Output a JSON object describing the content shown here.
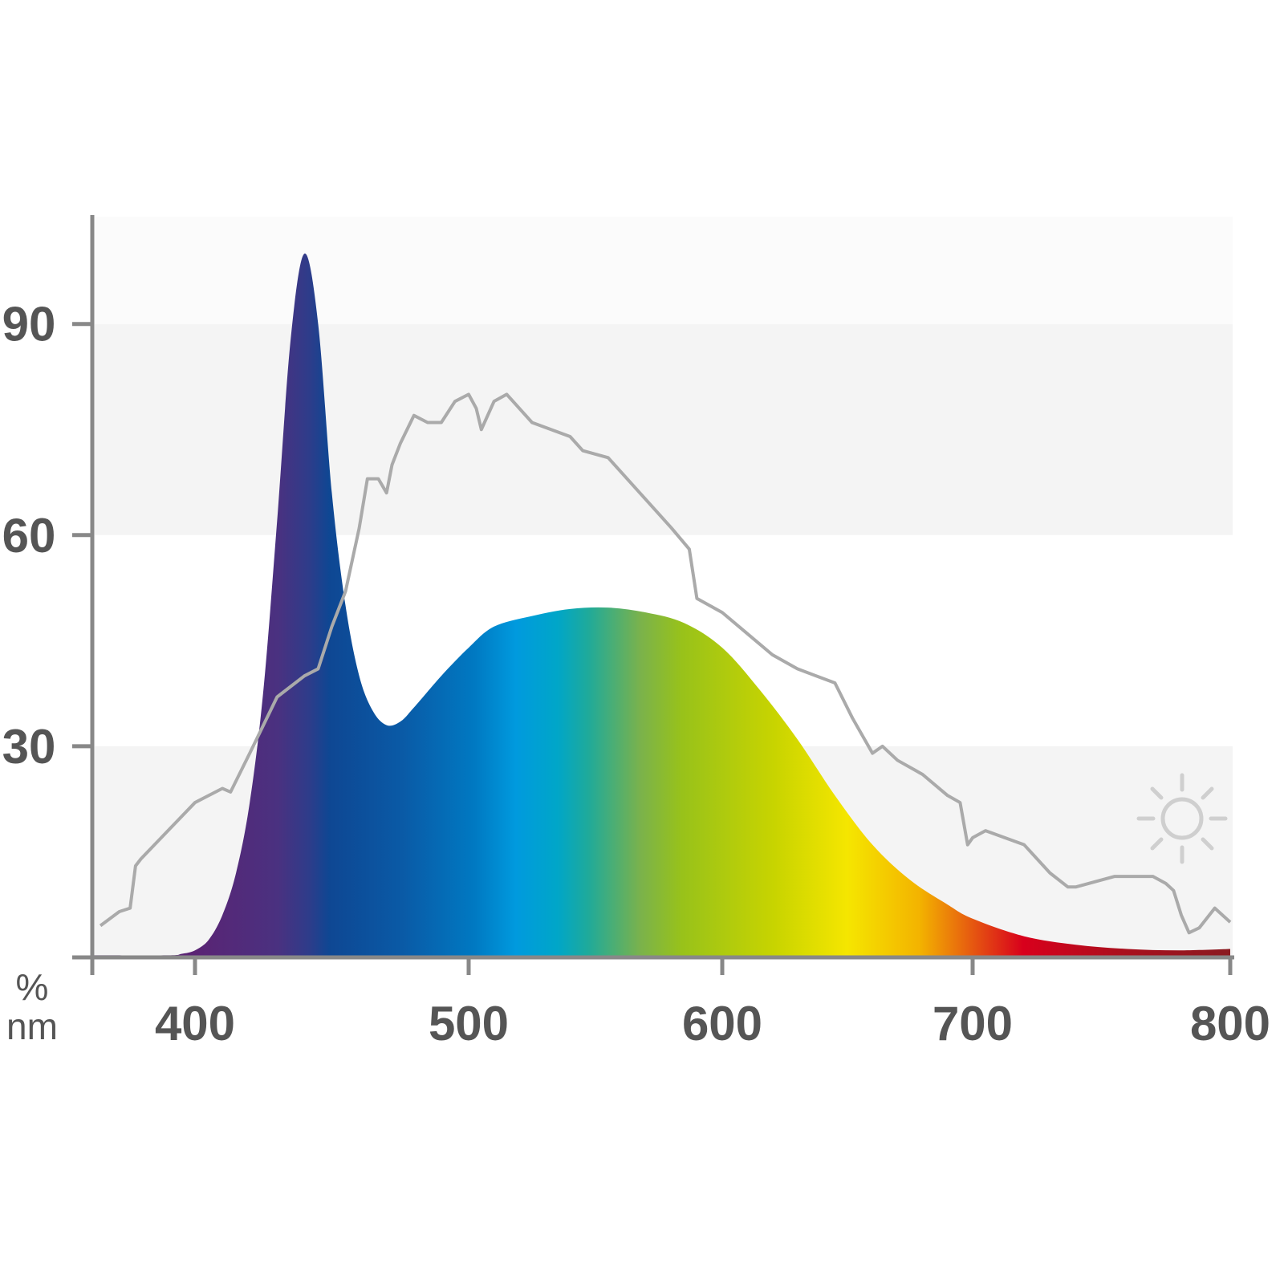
{
  "chart_data": {
    "type": "area",
    "title": "",
    "xlabel": "nm",
    "ylabel": "%",
    "xlim": [
      362,
      800
    ],
    "ylim": [
      0,
      105
    ],
    "grid": "alternating horizontal bands",
    "x_ticks": [
      "400",
      "500",
      "600",
      "700",
      "800"
    ],
    "y_ticks": [
      "30",
      "60",
      "90"
    ],
    "legend": "none; sun icon marks the sunlight reference curve (right)",
    "series": [
      {
        "name": "LED spectrum",
        "style": "filled area with spectral color gradient",
        "x": [
          362,
          390,
          395,
          400,
          405,
          410,
          415,
          420,
          425,
          430,
          435,
          440,
          445,
          450,
          455,
          460,
          465,
          470,
          475,
          480,
          490,
          500,
          510,
          525,
          540,
          555,
          570,
          585,
          600,
          615,
          630,
          645,
          660,
          675,
          690,
          700,
          720,
          740,
          760,
          780,
          800
        ],
        "y": [
          0.3,
          0.3,
          0.5,
          1,
          2.5,
          6,
          12,
          22,
          38,
          62,
          88,
          100,
          90,
          66,
          50,
          40,
          35,
          33,
          33.5,
          35.5,
          40,
          44,
          47,
          48.5,
          49.5,
          49.7,
          49,
          47.5,
          44,
          38,
          31,
          23,
          16,
          11,
          7.5,
          5.5,
          3,
          1.8,
          1.2,
          1,
          1.2
        ]
      },
      {
        "name": "Sunlight",
        "style": "gray line",
        "x": [
          365,
          372,
          376,
          378,
          380,
          390,
          400,
          410,
          413,
          420,
          430,
          440,
          445,
          450,
          455,
          460,
          463,
          467,
          470,
          472,
          475,
          480,
          485,
          490,
          495,
          500,
          503,
          505,
          510,
          515,
          525,
          540,
          545,
          555,
          565,
          580,
          587,
          590,
          595,
          600,
          610,
          620,
          630,
          645,
          652,
          660,
          664,
          670,
          680,
          690,
          695,
          698,
          700,
          705,
          720,
          730,
          737,
          740,
          755,
          770,
          775,
          778,
          781,
          784,
          788,
          794,
          800
        ],
        "y": [
          4.5,
          6.5,
          7,
          13,
          14,
          18,
          22,
          24,
          23.5,
          29,
          37,
          40,
          41,
          47,
          52,
          61,
          68,
          68,
          66,
          70,
          73,
          77,
          76,
          76,
          79,
          80,
          78,
          75,
          79,
          80,
          76,
          74,
          72,
          71,
          67,
          61,
          58,
          51,
          50,
          49,
          46,
          43,
          41,
          39,
          34,
          29,
          30,
          28,
          26,
          23,
          22,
          16,
          17,
          18,
          16,
          12,
          10,
          10,
          11.5,
          11.5,
          10.5,
          9.5,
          6,
          3.5,
          4.2,
          7,
          5
        ]
      }
    ],
    "axis_labels": {
      "y_unit": "%",
      "x_unit": "nm"
    },
    "colors": {
      "axis": "#888888",
      "band": "#f4f4f4",
      "sun_line": "#aaaaaa",
      "label": "#555555"
    }
  }
}
